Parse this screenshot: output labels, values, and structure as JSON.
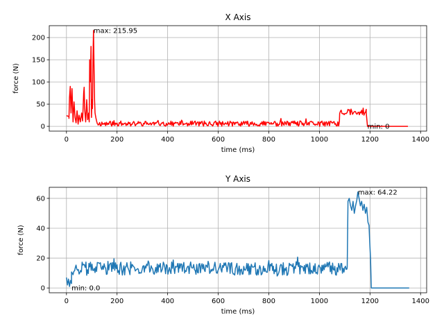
{
  "chart_data": [
    {
      "type": "line",
      "title": "X Axis",
      "xlabel": "time (ms)",
      "ylabel": "force (N)",
      "xlim": [
        -68,
        1424
      ],
      "ylim": [
        -10.8,
        226.8
      ],
      "xticks": [
        0,
        200,
        400,
        600,
        800,
        1000,
        1200,
        1400
      ],
      "yticks": [
        0,
        50,
        100,
        150,
        200
      ],
      "grid": true,
      "series": [
        {
          "color": "#ff0000",
          "segments": [
            {
              "x0": 0,
              "x1": 10,
              "pts": [
                [
                  0,
                  24
                ],
                [
                  10,
                  22
                ]
              ],
              "noise": 0
            },
            {
              "x0": 10,
              "x1": 125,
              "pts": [
                [
                  10,
                  18
                ],
                [
                  12,
                  65
                ],
                [
                  15,
                  90
                ],
                [
                  18,
                  30
                ],
                [
                  22,
                  85
                ],
                [
                  26,
                  10
                ],
                [
                  30,
                  55
                ],
                [
                  34,
                  20
                ],
                [
                  38,
                  8
                ],
                [
                  42,
                  35
                ],
                [
                  46,
                  5
                ],
                [
                  50,
                  25
                ],
                [
                  55,
                  10
                ],
                [
                  60,
                  30
                ],
                [
                  64,
                  12
                ],
                [
                  68,
                  75
                ],
                [
                  70,
                  88
                ],
                [
                  72,
                  40
                ],
                [
                  76,
                  10
                ],
                [
                  80,
                  60
                ],
                [
                  84,
                  15
                ],
                [
                  88,
                  30
                ],
                [
                  90,
                  10
                ],
                [
                  92,
                  150
                ],
                [
                  95,
                  100
                ],
                [
                  97,
                  180
                ],
                [
                  99,
                  20
                ],
                [
                  101,
                  60
                ],
                [
                  103,
                  40
                ],
                [
                  105,
                  160
                ],
                [
                  107,
                  215.95
                ],
                [
                  109,
                  140
                ],
                [
                  111,
                  60
                ],
                [
                  113,
                  30
                ],
                [
                  116,
                  20
                ],
                [
                  119,
                  12
                ],
                [
                  122,
                  6
                ],
                [
                  125,
                  4
                ]
              ],
              "noise": 0
            },
            {
              "x0": 125,
              "x1": 1080,
              "pts": [],
              "base": 6,
              "noise": 6,
              "seed": 11
            },
            {
              "x0": 1080,
              "x1": 1185,
              "pts": [],
              "base": 33,
              "noise": 8,
              "seed": 23
            },
            {
              "x0": 1185,
              "x1": 1190,
              "pts": [
                [
                  1185,
                  30
                ],
                [
                  1190,
                  0
                ]
              ],
              "noise": 0
            },
            {
              "x0": 1190,
              "x1": 1350,
              "pts": [
                [
                  1190,
                  0
                ],
                [
                  1350,
                  0
                ]
              ],
              "noise": 0
            }
          ]
        }
      ],
      "annotations": [
        {
          "text": "max: 215.95",
          "x": 107,
          "y": 215.95
        },
        {
          "text": "min: 0",
          "x": 1190,
          "y": 0
        }
      ]
    },
    {
      "type": "line",
      "title": "Y Axis",
      "xlabel": "time (ms)",
      "ylabel": "force (N)",
      "xlim": [
        -68,
        1424
      ],
      "ylim": [
        -3.2,
        67.4
      ],
      "xticks": [
        0,
        200,
        400,
        600,
        800,
        1000,
        1200,
        1400
      ],
      "yticks": [
        0,
        20,
        40,
        60
      ],
      "grid": true,
      "series": [
        {
          "color": "#1f77b4",
          "segments": [
            {
              "x0": 0,
              "x1": 20,
              "pts": [
                [
                  0,
                  7
                ],
                [
                  4,
                  2
                ],
                [
                  8,
                  6
                ],
                [
                  12,
                  1
                ],
                [
                  16,
                  5
                ],
                [
                  20,
                  3
                ]
              ],
              "noise": 0
            },
            {
              "x0": 20,
              "x1": 1110,
              "pts": [],
              "base": 13,
              "noise": 4.5,
              "seed": 37
            },
            {
              "x0": 1110,
              "x1": 1205,
              "pts": [
                [
                  1110,
                  14
                ],
                [
                  1113,
                  58
                ],
                [
                  1118,
                  60
                ],
                [
                  1123,
                  55
                ],
                [
                  1128,
                  52
                ],
                [
                  1133,
                  58
                ],
                [
                  1138,
                  50
                ],
                [
                  1143,
                  55
                ],
                [
                  1148,
                  59
                ],
                [
                  1152,
                  64.22
                ],
                [
                  1157,
                  60
                ],
                [
                  1162,
                  55
                ],
                [
                  1167,
                  58
                ],
                [
                  1172,
                  52
                ],
                [
                  1177,
                  56
                ],
                [
                  1182,
                  50
                ],
                [
                  1187,
                  54
                ],
                [
                  1192,
                  44
                ],
                [
                  1196,
                  42
                ],
                [
                  1199,
                  30
                ],
                [
                  1202,
                  20
                ],
                [
                  1205,
                  0
                ]
              ],
              "noise": 0
            },
            {
              "x0": 1205,
              "x1": 1355,
              "pts": [
                [
                  1205,
                  0
                ],
                [
                  1355,
                  0
                ]
              ],
              "noise": 0
            }
          ]
        }
      ],
      "annotations": [
        {
          "text": "max: 64.22",
          "x": 1152,
          "y": 64.22
        },
        {
          "text": "min: 0.0",
          "x": 20,
          "y": 0
        }
      ]
    }
  ]
}
